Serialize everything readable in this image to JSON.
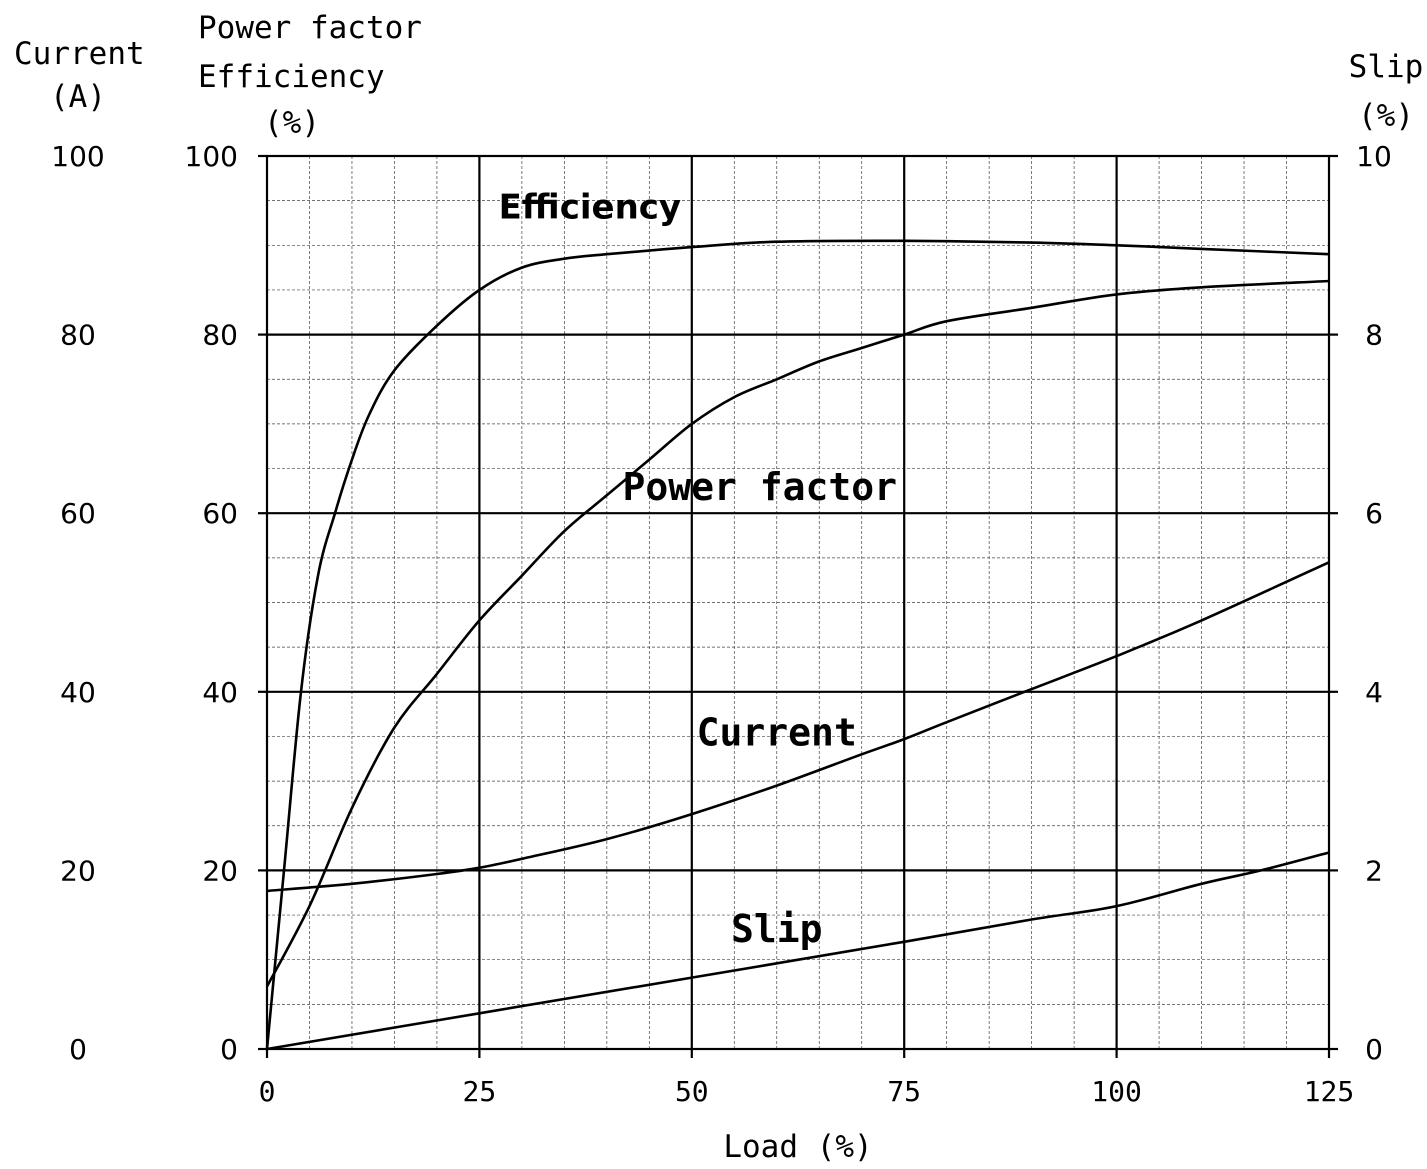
{
  "chart_data": {
    "type": "line",
    "x": {
      "label": "Load  (%)",
      "range": [
        0,
        125
      ],
      "ticks": [
        0,
        25,
        50,
        75,
        100,
        125
      ],
      "tick_labels": [
        "0",
        "25",
        "50",
        "75",
        "100",
        "125"
      ]
    },
    "y_left_outer": {
      "label_lines": [
        "Current",
        "(A)"
      ],
      "range": [
        0,
        100
      ],
      "tick_labels": [
        "0",
        "20",
        "40",
        "60",
        "80",
        "100"
      ]
    },
    "y_left_inner": {
      "label_lines": [
        "Power factor",
        "Efficiency",
        "(%)"
      ],
      "range": [
        0,
        100
      ],
      "tick_labels": [
        "0",
        "20",
        "40",
        "60",
        "80",
        "100"
      ]
    },
    "y_right": {
      "label_lines": [
        "Slip",
        "(%)"
      ],
      "range": [
        0,
        10
      ],
      "tick_labels": [
        "0",
        "2",
        "4",
        "6",
        "8",
        "10"
      ]
    },
    "grid": true,
    "series": [
      {
        "name": "Efficiency",
        "axis": "left",
        "points": [
          [
            0,
            0
          ],
          [
            2,
            20
          ],
          [
            4,
            40
          ],
          [
            6,
            53
          ],
          [
            8,
            60
          ],
          [
            10,
            66
          ],
          [
            12,
            71
          ],
          [
            15,
            76
          ],
          [
            20,
            81
          ],
          [
            25,
            85
          ],
          [
            30,
            87.5
          ],
          [
            35,
            88.5
          ],
          [
            40,
            89
          ],
          [
            50,
            89.8
          ],
          [
            60,
            90.4
          ],
          [
            75,
            90.5
          ],
          [
            90,
            90.3
          ],
          [
            100,
            90
          ],
          [
            110,
            89.6
          ],
          [
            125,
            89
          ]
        ]
      },
      {
        "name": "Power factor",
        "axis": "left",
        "points": [
          [
            0,
            7
          ],
          [
            5,
            16
          ],
          [
            10,
            27
          ],
          [
            15,
            36
          ],
          [
            20,
            42
          ],
          [
            25,
            48
          ],
          [
            30,
            53
          ],
          [
            35,
            58
          ],
          [
            40,
            62
          ],
          [
            45,
            66
          ],
          [
            50,
            70
          ],
          [
            55,
            73
          ],
          [
            60,
            75
          ],
          [
            65,
            77
          ],
          [
            70,
            78.5
          ],
          [
            75,
            80
          ],
          [
            80,
            81.5
          ],
          [
            90,
            83
          ],
          [
            100,
            84.5
          ],
          [
            110,
            85.3
          ],
          [
            125,
            86
          ]
        ]
      },
      {
        "name": "Current",
        "axis": "left",
        "points": [
          [
            0,
            17.7
          ],
          [
            10,
            18.5
          ],
          [
            20,
            19.6
          ],
          [
            25,
            20.3
          ],
          [
            30,
            21.3
          ],
          [
            40,
            23.5
          ],
          [
            50,
            26.3
          ],
          [
            60,
            29.5
          ],
          [
            70,
            33
          ],
          [
            75,
            34.7
          ],
          [
            80,
            36.6
          ],
          [
            90,
            40.3
          ],
          [
            100,
            44
          ],
          [
            110,
            48
          ],
          [
            125,
            54.5
          ]
        ]
      },
      {
        "name": "Slip",
        "axis": "right",
        "points": [
          [
            0,
            0
          ],
          [
            25,
            0.4
          ],
          [
            50,
            0.8
          ],
          [
            75,
            1.2
          ],
          [
            90,
            1.45
          ],
          [
            100,
            1.6
          ],
          [
            110,
            1.85
          ],
          [
            117,
            2.0
          ],
          [
            125,
            2.2
          ]
        ]
      }
    ],
    "annotations": [
      {
        "text": "Efficiency",
        "x": 38,
        "y": 93
      },
      {
        "text": "Power factor",
        "x": 58,
        "y": 61.5
      },
      {
        "text": "Current",
        "x": 60,
        "y": 34
      },
      {
        "text": "Slip",
        "x": 60,
        "y": 12
      }
    ]
  }
}
